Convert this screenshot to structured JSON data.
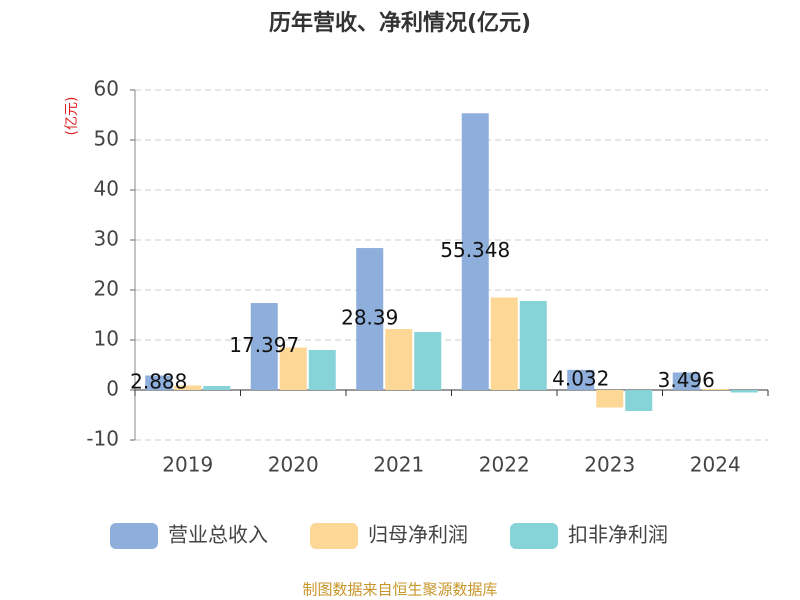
{
  "chart_data": {
    "type": "bar",
    "title": "历年营收、净利情况(亿元)",
    "y_axis_label": "(亿元)",
    "categories": [
      "2019",
      "2020",
      "2021",
      "2022",
      "2023",
      "2024"
    ],
    "series": [
      {
        "name": "营业总收入",
        "color": "#8eaedb",
        "values": [
          2.888,
          17.397,
          28.39,
          55.348,
          4.032,
          3.496
        ],
        "show_labels": true
      },
      {
        "name": "归母净利润",
        "color": "#fdd796",
        "values": [
          0.9,
          8.5,
          12.2,
          18.5,
          -3.5,
          0.2
        ]
      },
      {
        "name": "扣非净利润",
        "color": "#86d4d8",
        "values": [
          0.8,
          8.0,
          11.6,
          17.8,
          -4.2,
          -0.5
        ]
      }
    ],
    "ylim": [
      -10,
      60
    ],
    "yticks": [
      -10,
      0,
      10,
      20,
      30,
      40,
      50,
      60
    ],
    "grid": true,
    "source": "制图数据来自恒生聚源数据库"
  }
}
